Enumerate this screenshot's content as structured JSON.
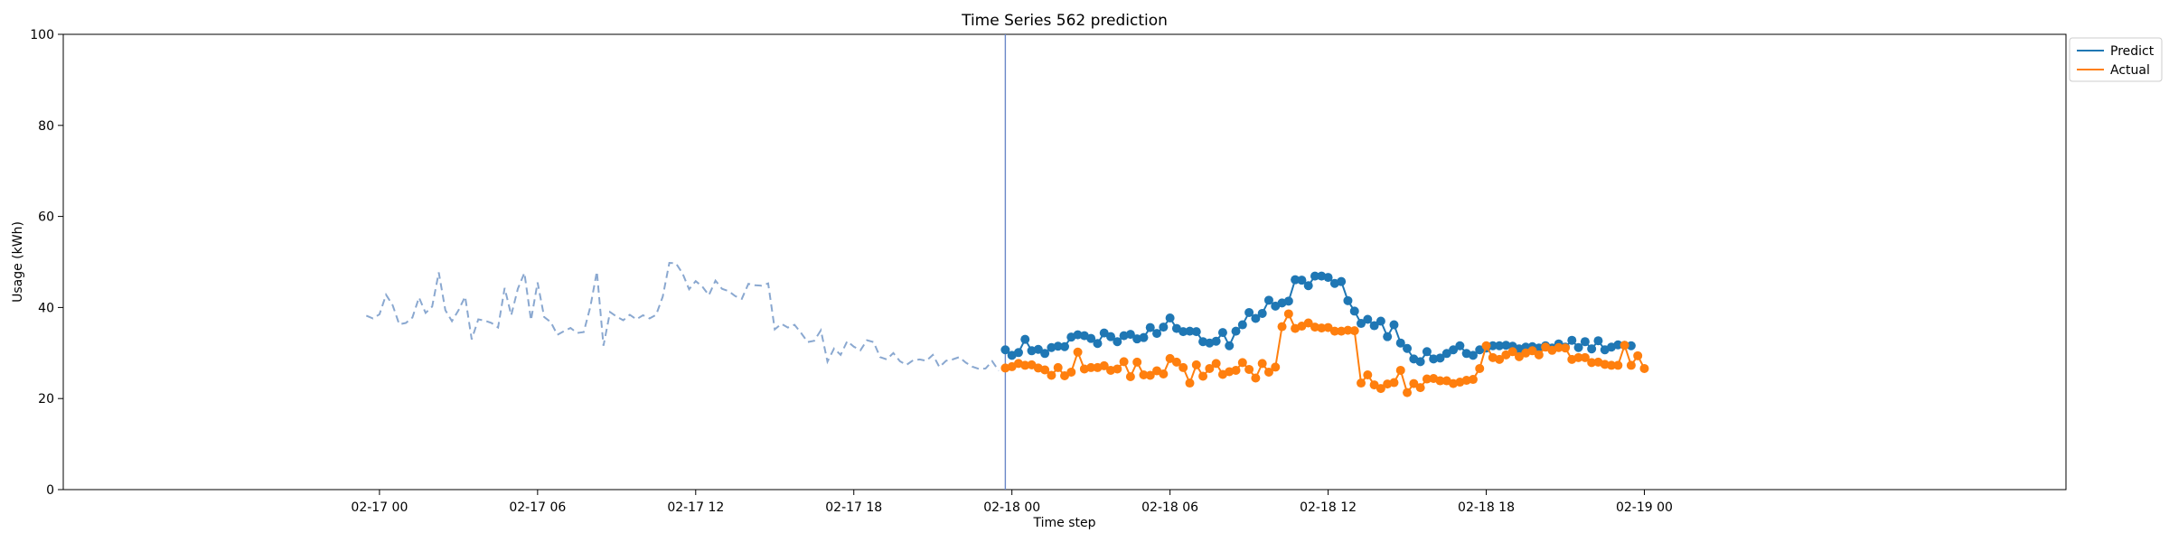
{
  "chart_data": {
    "type": "line",
    "title": "Time Series 562 prediction",
    "xlabel": "Time step",
    "ylabel": "Usage (kWh)",
    "ylim": [
      0,
      100
    ],
    "xlim_hours": [
      -12.0,
      64.0
    ],
    "yticks": [
      0,
      20,
      40,
      60,
      80,
      100
    ],
    "xticks": [
      {
        "hour": 0,
        "label": "02-17 00"
      },
      {
        "hour": 6,
        "label": "02-17 06"
      },
      {
        "hour": 12,
        "label": "02-17 12"
      },
      {
        "hour": 18,
        "label": "02-17 18"
      },
      {
        "hour": 24,
        "label": "02-18 00"
      },
      {
        "hour": 30,
        "label": "02-18 06"
      },
      {
        "hour": 36,
        "label": "02-18 12"
      },
      {
        "hour": 42,
        "label": "02-18 18"
      },
      {
        "hour": 48,
        "label": "02-19 00"
      }
    ],
    "history_start_hour": -0.5,
    "step_hours": 0.25,
    "forecast_start_hour": 23.75,
    "history_values": [
      38.2,
      37.6,
      38.5,
      42.8,
      40.5,
      36.3,
      36.6,
      37.8,
      42.2,
      38.8,
      40.2,
      47.7,
      39.4,
      37.0,
      39.4,
      42.4,
      33.0,
      37.4,
      37.1,
      36.6,
      35.6,
      44.3,
      38.3,
      44.1,
      47.6,
      37.2,
      45.5,
      37.9,
      36.8,
      34.0,
      34.8,
      35.5,
      34.4,
      34.6,
      40.1,
      47.9,
      31.6,
      39.0,
      38.0,
      37.2,
      38.4,
      37.4,
      38.3,
      37.6,
      38.4,
      42.4,
      49.8,
      49.7,
      47.5,
      44.0,
      45.8,
      44.6,
      42.7,
      45.9,
      44.1,
      43.6,
      42.5,
      41.9,
      45.2,
      44.9,
      44.8,
      45.3,
      35.2,
      36.4,
      35.6,
      36.2,
      34.4,
      32.4,
      32.7,
      35.0,
      28.1,
      31.0,
      29.6,
      32.6,
      31.4,
      30.6,
      32.8,
      32.4,
      29.1,
      28.6,
      30.0,
      28.2,
      27.4,
      28.4,
      28.6,
      28.3,
      29.6,
      26.9,
      28.3,
      28.6,
      29.1,
      27.9,
      27.0,
      26.5,
      26.6,
      28.2,
      26.1
    ],
    "series": [
      {
        "name": "Predict",
        "color": "#1f77b4",
        "values": [
          30.7,
          29.5,
          30.1,
          33.0,
          30.5,
          30.8,
          29.9,
          31.2,
          31.5,
          31.4,
          33.5,
          34.0,
          33.8,
          33.2,
          32.1,
          34.4,
          33.6,
          32.5,
          33.8,
          34.1,
          33.1,
          33.4,
          35.6,
          34.3,
          35.7,
          37.7,
          35.4,
          34.7,
          34.8,
          34.7,
          32.5,
          32.2,
          32.6,
          34.5,
          31.6,
          34.8,
          36.2,
          38.9,
          37.6,
          38.7,
          41.6,
          40.3,
          41.0,
          41.4,
          46.1,
          46.0,
          44.8,
          46.9,
          46.9,
          46.6,
          45.3,
          45.7,
          41.5,
          39.2,
          36.5,
          37.4,
          36.0,
          37.0,
          33.6,
          36.2,
          32.2,
          31.0,
          28.7,
          28.1,
          30.3,
          28.7,
          28.9,
          29.9,
          30.7,
          31.6,
          29.9,
          29.5,
          30.7,
          31.1,
          31.6,
          31.6,
          31.7,
          31.5,
          30.9,
          31.3,
          31.4,
          31.1,
          31.6,
          31.1,
          32.0,
          31.3,
          32.8,
          31.2,
          32.5,
          30.9,
          32.7,
          30.7,
          31.3,
          31.8,
          31.7,
          31.6
        ]
      },
      {
        "name": "Actual",
        "color": "#ff7f0e",
        "values": [
          26.7,
          27.0,
          27.7,
          27.3,
          27.4,
          26.7,
          26.3,
          25.1,
          26.8,
          25.0,
          25.8,
          30.2,
          26.5,
          26.8,
          26.8,
          27.2,
          26.2,
          26.5,
          28.1,
          24.8,
          28.0,
          25.2,
          25.1,
          26.1,
          25.4,
          28.8,
          28.0,
          26.8,
          23.4,
          27.4,
          24.9,
          26.6,
          27.7,
          25.3,
          25.9,
          26.2,
          27.9,
          26.4,
          24.5,
          27.7,
          25.8,
          26.9,
          35.8,
          38.6,
          35.4,
          35.9,
          36.6,
          35.7,
          35.5,
          35.6,
          34.8,
          34.8,
          35.0,
          34.9,
          23.4,
          25.2,
          23.0,
          22.2,
          23.2,
          23.5,
          26.2,
          21.3,
          23.3,
          22.4,
          24.3,
          24.4,
          23.9,
          23.9,
          23.3,
          23.6,
          24.0,
          24.2,
          26.6,
          31.6,
          29.0,
          28.6,
          29.6,
          30.3,
          29.2,
          30.0,
          30.5,
          29.6,
          31.3,
          30.6,
          31.2,
          31.1,
          28.6,
          29.0,
          29.0,
          27.9,
          28.0,
          27.5,
          27.3,
          27.3,
          31.7,
          27.3,
          29.4,
          26.6
        ]
      }
    ],
    "legend": {
      "position": "upper-right-outside",
      "entries": [
        "Predict",
        "Actual"
      ]
    },
    "vertical_marker_hour": 23.75
  }
}
